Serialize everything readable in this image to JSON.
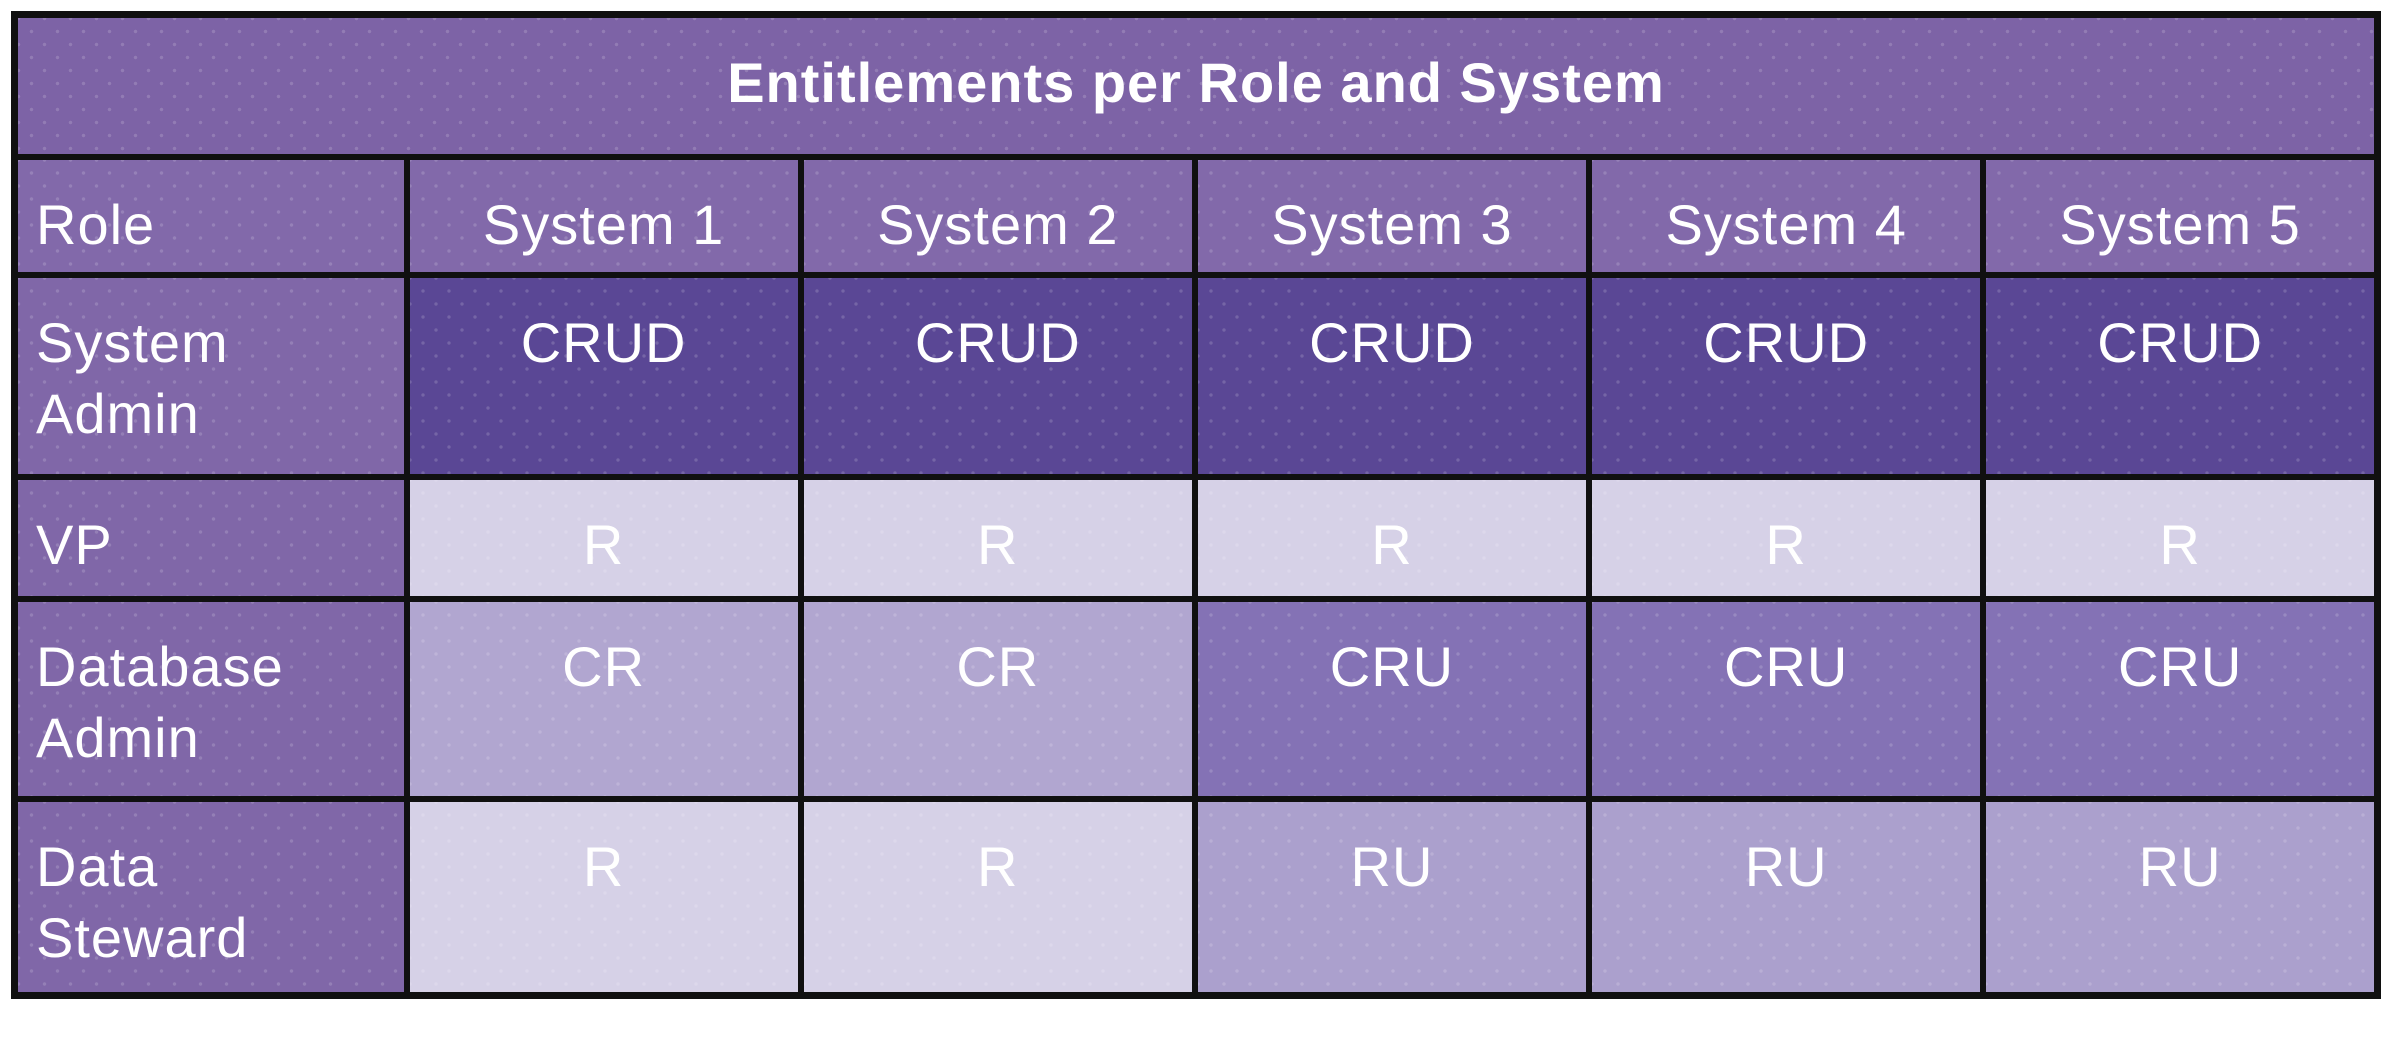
{
  "chart_data": {
    "type": "table",
    "title": "Entitlements per Role and System",
    "columns": [
      "Role",
      "System 1",
      "System 2",
      "System 3",
      "System 4",
      "System 5"
    ],
    "rows": [
      [
        "System Admin",
        "CRUD",
        "CRUD",
        "CRUD",
        "CRUD",
        "CRUD"
      ],
      [
        "VP",
        "R",
        "R",
        "R",
        "R",
        "R"
      ],
      [
        "Database Admin",
        "CR",
        "CR",
        "CRU",
        "CRU",
        "CRU"
      ],
      [
        "Data Steward",
        "R",
        "R",
        "RU",
        "RU",
        "RU"
      ]
    ],
    "legend_note": "",
    "layout": "title row spans all 6 columns; first column holds role labels; grid lines black; all text white"
  },
  "colors": {
    "page_bg": "#ffffff",
    "grid_border": "#101010",
    "text": "#ffffff",
    "title_bg": "#7d63a6",
    "header_bg": "#8269aa",
    "label_bg": "#8067a8",
    "crud_bg": "#5a4795",
    "r_bg": "#d6d1e7",
    "cr_bg": "#b1a6d0",
    "cru_bg": "#8472b5",
    "ru_bg": "#aba0cd"
  }
}
